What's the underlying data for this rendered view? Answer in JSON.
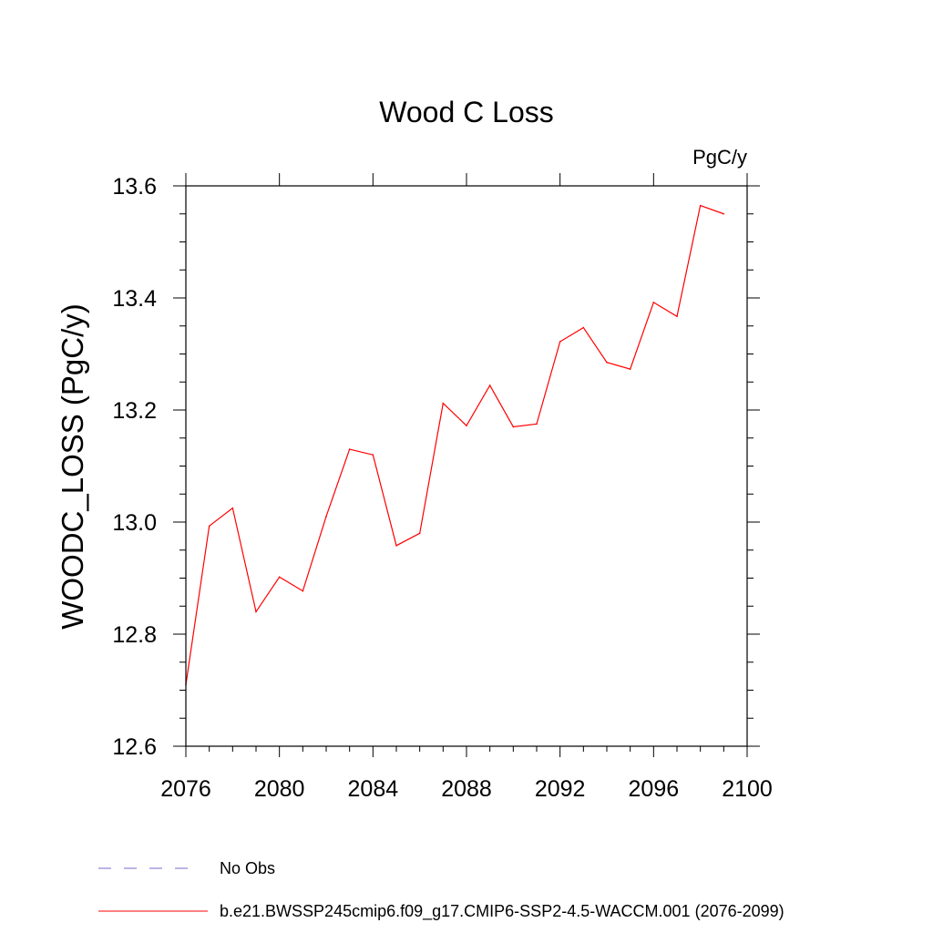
{
  "chart_data": {
    "type": "line",
    "title": "Wood C Loss",
    "units": "PgC/y",
    "ylabel": "WOODC_LOSS  (PgC/y)",
    "xlabel": "",
    "xlim": [
      2076,
      2100
    ],
    "ylim": [
      12.6,
      13.6
    ],
    "x_ticks": [
      2076,
      2080,
      2084,
      2088,
      2092,
      2096,
      2100
    ],
    "y_ticks": [
      12.6,
      12.8,
      13.0,
      13.2,
      13.4,
      13.6
    ],
    "x_tick_labels": [
      "2076",
      "2080",
      "2084",
      "2088",
      "2092",
      "2096",
      "2100"
    ],
    "y_tick_labels": [
      "12.6",
      "12.8",
      "13.0",
      "13.2",
      "13.4",
      "13.6"
    ],
    "series": [
      {
        "name": "b.e21.BWSSP245cmip6.f09_g17.CMIP6-SSP2-4.5-WACCM.001 (2076-2099)",
        "color": "#ff0000",
        "x": [
          2076,
          2077,
          2078,
          2079,
          2080,
          2081,
          2082,
          2083,
          2084,
          2085,
          2086,
          2087,
          2088,
          2089,
          2090,
          2091,
          2092,
          2093,
          2094,
          2095,
          2096,
          2097,
          2098,
          2099
        ],
        "values": [
          12.71,
          12.993,
          13.025,
          12.84,
          12.902,
          12.877,
          13.01,
          13.13,
          13.12,
          12.958,
          12.98,
          13.212,
          13.172,
          13.244,
          13.17,
          13.175,
          13.322,
          13.347,
          13.285,
          13.273,
          13.392,
          13.367,
          13.565,
          13.55
        ]
      }
    ],
    "legend": [
      {
        "label": "No Obs",
        "color": "#7b68c8",
        "style": "dashed"
      },
      {
        "label": "b.e21.BWSSP245cmip6.f09_g17.CMIP6-SSP2-4.5-WACCM.001 (2076-2099)",
        "color": "#ff0000",
        "style": "solid"
      }
    ]
  }
}
